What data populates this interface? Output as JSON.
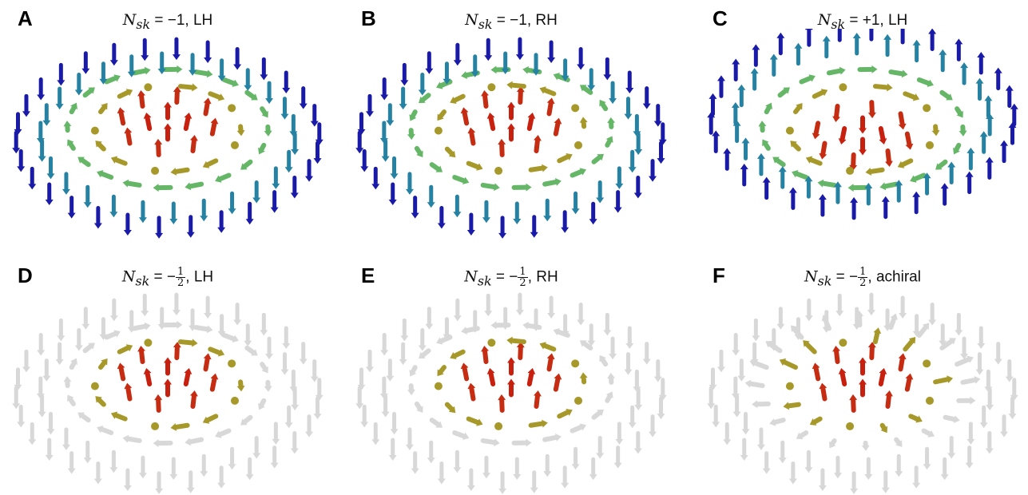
{
  "panels": [
    {
      "letter": "A",
      "n_symbol": "N",
      "n_sub": "sk",
      "rel": "= −",
      "value": "1",
      "value_num": "",
      "value_den": "",
      "suffix": ", LH",
      "style": "full",
      "chirality": "LH",
      "core": "up"
    },
    {
      "letter": "B",
      "n_symbol": "N",
      "n_sub": "sk",
      "rel": "= −",
      "value": "1",
      "value_num": "",
      "value_den": "",
      "suffix": ", RH",
      "style": "full",
      "chirality": "RH",
      "core": "up"
    },
    {
      "letter": "C",
      "n_symbol": "N",
      "n_sub": "sk",
      "rel": "= +",
      "value": "1",
      "value_num": "",
      "value_den": "",
      "suffix": ", LH",
      "style": "full",
      "chirality": "LH",
      "core": "down"
    },
    {
      "letter": "D",
      "n_symbol": "N",
      "n_sub": "sk",
      "rel": "= −",
      "value": "",
      "value_num": "1",
      "value_den": "2",
      "suffix": ", LH",
      "style": "half",
      "chirality": "LH",
      "core": "up"
    },
    {
      "letter": "E",
      "n_symbol": "N",
      "n_sub": "sk",
      "rel": "= −",
      "value": "",
      "value_num": "1",
      "value_den": "2",
      "suffix": ", RH",
      "style": "half",
      "chirality": "RH",
      "core": "up"
    },
    {
      "letter": "F",
      "n_symbol": "N",
      "n_sub": "sk",
      "rel": "= −",
      "value": "",
      "value_num": "1",
      "value_den": "2",
      "suffix": ", achiral",
      "style": "half",
      "chirality": "achiral",
      "core": "up"
    }
  ],
  "colors": {
    "outer_down": "#1a1aa8",
    "mid": "#2aa9a0",
    "ring": "#9cc233",
    "core": "#c8200f",
    "ghost": "#d8d8d8"
  }
}
